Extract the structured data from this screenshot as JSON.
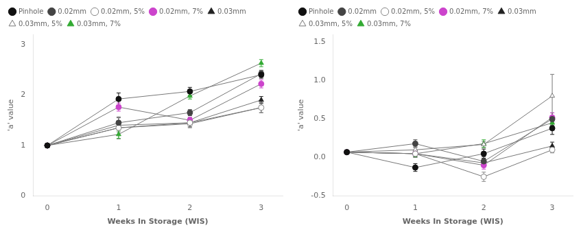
{
  "chart_data": [
    {
      "type": "line",
      "xlabel": "Weeks In Storage (WIS)",
      "ylabel": "'a' value",
      "x": [
        0,
        1,
        2,
        3
      ],
      "xlim": [
        -0.2,
        3.3
      ],
      "ylim": [
        0,
        3.2
      ],
      "xticks": [
        0,
        1,
        2,
        3
      ],
      "yticks": [
        0,
        1,
        2,
        3
      ],
      "grid": false,
      "legend": "upper left",
      "series": [
        {
          "name": "Pinhole",
          "color": "#111111",
          "marker": "circle",
          "values": [
            1.0,
            1.92,
            2.07,
            2.4
          ],
          "yerr": [
            0.03,
            0.12,
            0.08,
            0.07
          ]
        },
        {
          "name": "0.02mm",
          "color": "#444444",
          "marker": "circle",
          "values": [
            1.0,
            1.45,
            1.65,
            2.42
          ],
          "yerr": [
            0.03,
            0.1,
            0.06,
            0.07
          ]
        },
        {
          "name": "0.02mm, 5%",
          "color": "#888888",
          "marker": "circle_open",
          "values": [
            1.0,
            1.35,
            1.45,
            1.75
          ],
          "yerr": [
            0.03,
            0.22,
            0.1,
            0.1
          ]
        },
        {
          "name": "0.02mm, 7%",
          "color": "#cc44cc",
          "marker": "circle",
          "values": [
            1.0,
            1.76,
            1.5,
            2.22
          ],
          "yerr": [
            0.03,
            0.08,
            0.06,
            0.08
          ]
        },
        {
          "name": "0.03mm",
          "color": "#222222",
          "marker": "triangle",
          "values": [
            1.0,
            1.4,
            1.45,
            1.9
          ],
          "yerr": [
            0.03,
            0.08,
            0.08,
            0.07
          ]
        },
        {
          "name": "0.03mm, 5%",
          "color": "#777777",
          "marker": "triangle_open",
          "values": [
            1.0,
            1.35,
            1.43,
            1.75
          ],
          "yerr": [
            0.03,
            0.08,
            0.06,
            0.1
          ]
        },
        {
          "name": "0.03mm, 7%",
          "color": "#33aa33",
          "marker": "triangle",
          "values": [
            1.0,
            1.22,
            1.98,
            2.63
          ],
          "yerr": [
            0.03,
            0.08,
            0.06,
            0.07
          ]
        }
      ]
    },
    {
      "type": "line",
      "xlabel": "Weeks In Storage (WIS)",
      "ylabel": "'a' value",
      "x": [
        0,
        1,
        2,
        3
      ],
      "xlim": [
        -0.2,
        3.3
      ],
      "ylim": [
        -0.5,
        1.6
      ],
      "xticks": [
        0,
        1,
        2,
        3
      ],
      "yticks": [
        -0.5,
        {
          "value": 0,
          "label": "0.0"
        },
        0.5,
        {
          "value": 1,
          "label": "1.0"
        },
        1.5
      ],
      "grid": false,
      "legend": "upper left",
      "series": [
        {
          "name": "Pinhole",
          "color": "#111111",
          "marker": "circle",
          "values": [
            0.07,
            -0.13,
            0.05,
            0.38
          ],
          "yerr": [
            0.02,
            0.05,
            0.06,
            0.08
          ]
        },
        {
          "name": "0.02mm",
          "color": "#444444",
          "marker": "circle",
          "values": [
            0.07,
            0.18,
            -0.05,
            0.5
          ],
          "yerr": [
            0.02,
            0.05,
            0.06,
            0.08
          ]
        },
        {
          "name": "0.02mm, 5%",
          "color": "#888888",
          "marker": "circle_open",
          "values": [
            0.07,
            0.05,
            -0.25,
            0.1
          ],
          "yerr": [
            0.02,
            0.05,
            0.06,
            0.04
          ]
        },
        {
          "name": "0.02mm, 7%",
          "color": "#cc44cc",
          "marker": "circle",
          "values": [
            0.07,
            0.05,
            -0.1,
            0.52
          ],
          "yerr": [
            0.02,
            0.04,
            0.05,
            0.06
          ]
        },
        {
          "name": "0.03mm",
          "color": "#222222",
          "marker": "triangle",
          "values": [
            0.07,
            0.05,
            -0.07,
            0.15
          ],
          "yerr": [
            0.02,
            0.04,
            0.05,
            0.05
          ]
        },
        {
          "name": "0.03mm, 5%",
          "color": "#777777",
          "marker": "triangle_open",
          "values": [
            0.07,
            0.1,
            0.17,
            0.8
          ],
          "yerr": [
            0.02,
            0.04,
            0.04,
            0.28
          ]
        },
        {
          "name": "0.03mm, 7%",
          "color": "#33aa33",
          "marker": "triangle",
          "values": [
            0.07,
            0.05,
            0.18,
            0.45
          ],
          "yerr": [
            0.02,
            0.04,
            0.05,
            0.05
          ]
        }
      ]
    }
  ]
}
